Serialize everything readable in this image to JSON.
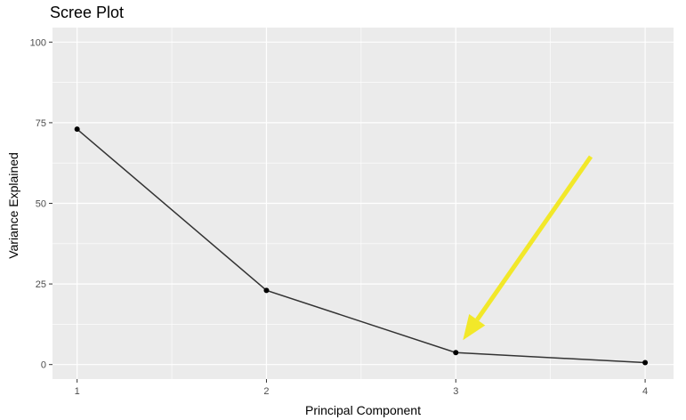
{
  "chart_data": {
    "type": "line",
    "title": "Scree Plot",
    "xlabel": "Principal Component",
    "ylabel": "Variance Explained",
    "x": [
      1,
      2,
      3,
      4
    ],
    "x_tick_labels": [
      "1",
      "2",
      "3",
      "4"
    ],
    "y_tick_values": [
      0,
      25,
      50,
      75,
      100
    ],
    "y_tick_labels": [
      "0",
      "25",
      "50",
      "75",
      "100"
    ],
    "series": [
      {
        "values": [
          73,
          23,
          3.7,
          0.6
        ],
        "color": "#333333",
        "marker": "point"
      }
    ],
    "xlim": [
      0.87,
      4.15
    ],
    "ylim": [
      -4.5,
      104.5
    ],
    "grid": true,
    "panel_background": "#ebebeb",
    "grid_color": "#ffffff",
    "annotation": {
      "type": "arrow",
      "color": "#f2e829",
      "points_to": {
        "x": 3,
        "y": 3.7
      }
    }
  }
}
